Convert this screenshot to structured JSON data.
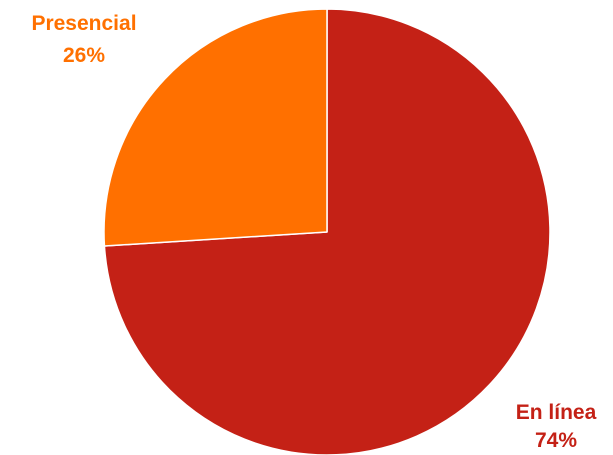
{
  "chart_data": {
    "type": "pie",
    "title": "",
    "slices": [
      {
        "label": "En línea",
        "value": 74,
        "value_text": "74%",
        "color": "#C42116"
      },
      {
        "label": "Presencial",
        "value": 26,
        "value_text": "26%",
        "color": "#FF7000"
      }
    ],
    "start": "top, clockwise",
    "slice_border_color": "#ffffff",
    "legend": "none (data labels outside slices)"
  }
}
